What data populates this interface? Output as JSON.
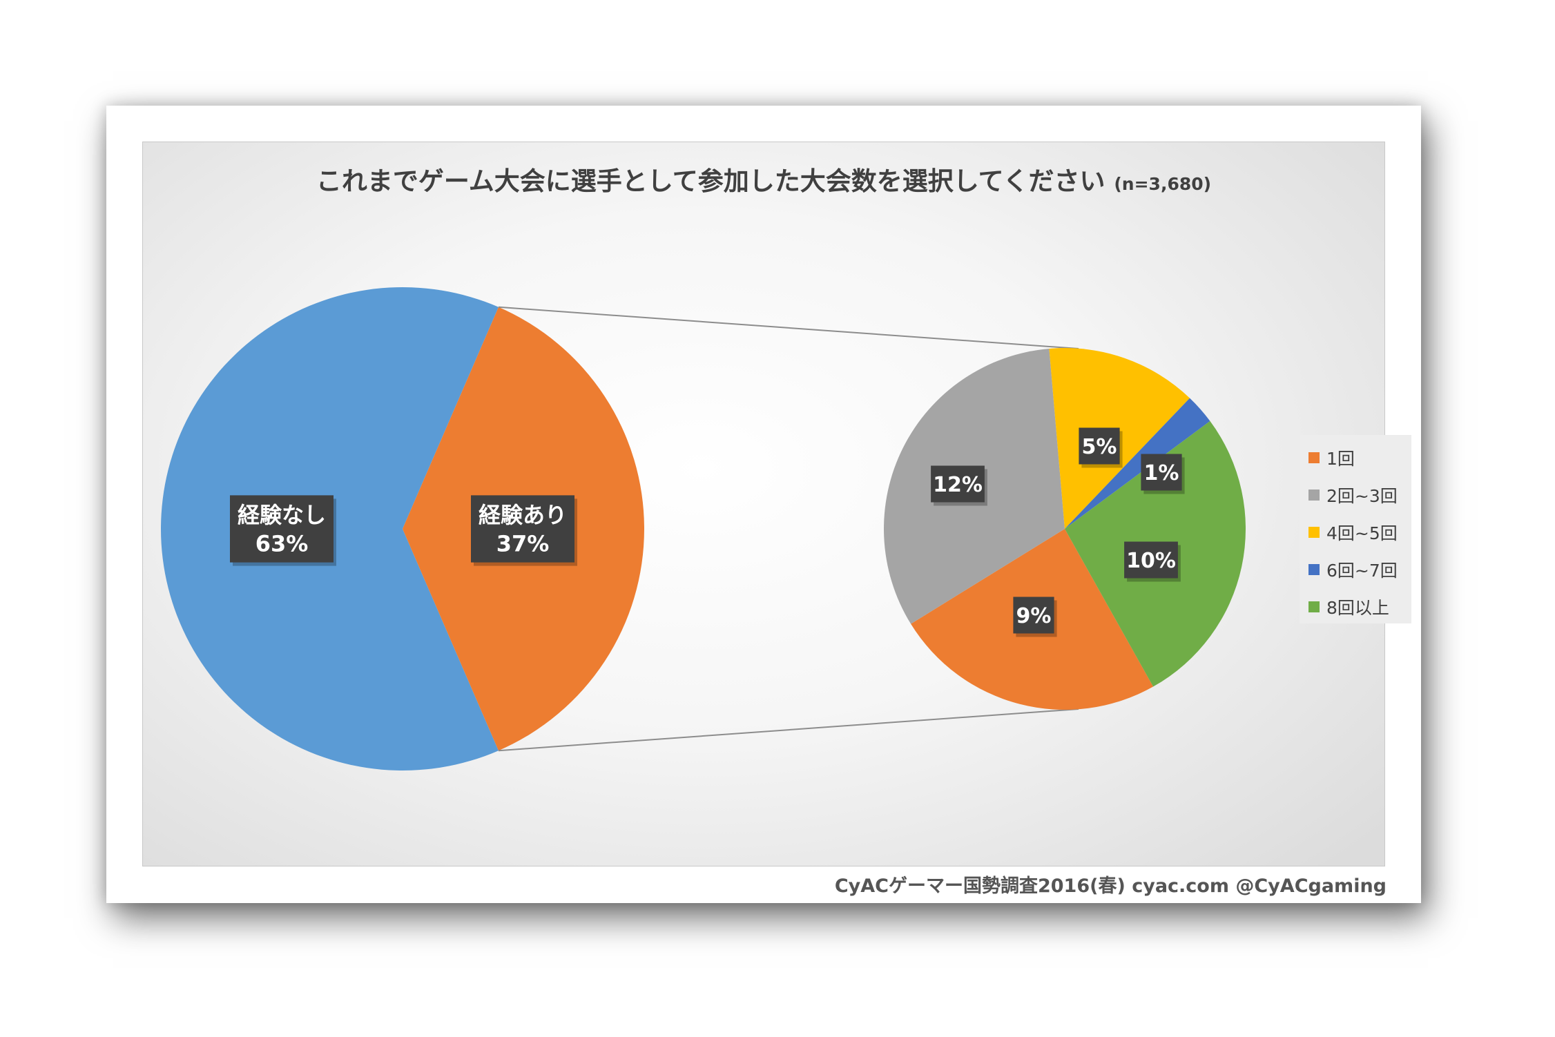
{
  "colors": {
    "blue": "#5b9bd5",
    "orange": "#ed7d31",
    "gray": "#a5a5a5",
    "yellow": "#ffc000",
    "darkblue": "#4472c4",
    "green": "#70ad47",
    "label_bg": "#404040"
  },
  "chart_data": [
    {
      "type": "pie",
      "title": "これまでゲーム大会に選手として参加した大会数を選択してください",
      "subtitle": "(n=3,680)",
      "slices": [
        {
          "name": "経験なし",
          "value": 63,
          "label": "63%",
          "color": "#5b9bd5"
        },
        {
          "name": "経験あり",
          "value": 37,
          "label": "37%",
          "color": "#ed7d31"
        }
      ]
    },
    {
      "type": "pie",
      "breakdown_of": "経験あり",
      "slices": [
        {
          "name": "1回",
          "value": 9,
          "label": "9%",
          "color": "#ed7d31"
        },
        {
          "name": "2回~3回",
          "value": 12,
          "label": "12%",
          "color": "#a5a5a5"
        },
        {
          "name": "4回~5回",
          "value": 5,
          "label": "5%",
          "color": "#ffc000"
        },
        {
          "name": "6回~7回",
          "value": 1,
          "label": "1%",
          "color": "#4472c4"
        },
        {
          "name": "8回以上",
          "value": 10,
          "label": "10%",
          "color": "#70ad47"
        }
      ],
      "legend_position": "right"
    }
  ],
  "footer": {
    "source": "CyACゲーマー国勢調査2016(春) cyac.com @CyACgaming"
  }
}
